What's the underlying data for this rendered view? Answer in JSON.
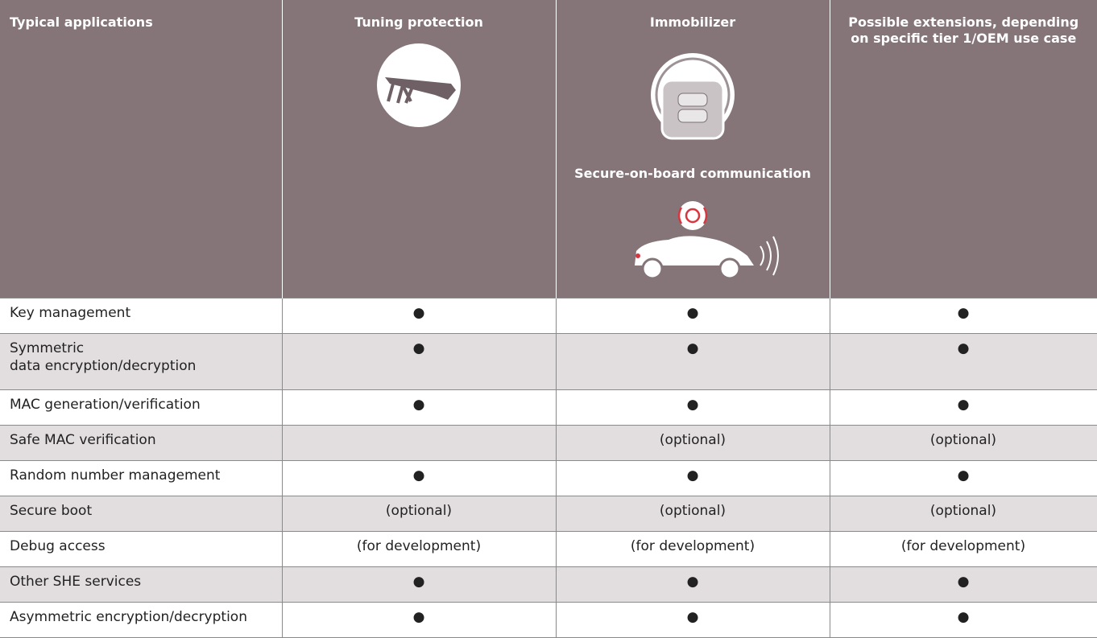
{
  "table": {
    "header": [
      "Typical applications",
      "Tuning protection",
      "Immobilizer",
      "Possible extensions, depending on specific tier 1/OEM use case"
    ],
    "header_note": "Secure-on-board communication",
    "rows": [
      [
        "Key management",
        "●",
        "●",
        "●"
      ],
      [
        "Symmetric\ndata encryption/decryption",
        "●",
        "●",
        "●"
      ],
      [
        "MAC generation/verification",
        "●",
        "●",
        "●"
      ],
      [
        "Safe MAC verification",
        null,
        "(optional)",
        "(optional)"
      ],
      [
        "Random number management",
        "●",
        "●",
        "●"
      ],
      [
        "Secure boot",
        "(optional)",
        "(optional)",
        "(optional)"
      ],
      [
        "Debug access",
        "(for development)",
        "(for development)",
        "(for development)"
      ],
      [
        "Other SHE services",
        "●",
        "●",
        "●"
      ],
      [
        "Asymmetric encryption/decryption",
        "●",
        "●",
        "●"
      ]
    ]
  }
}
